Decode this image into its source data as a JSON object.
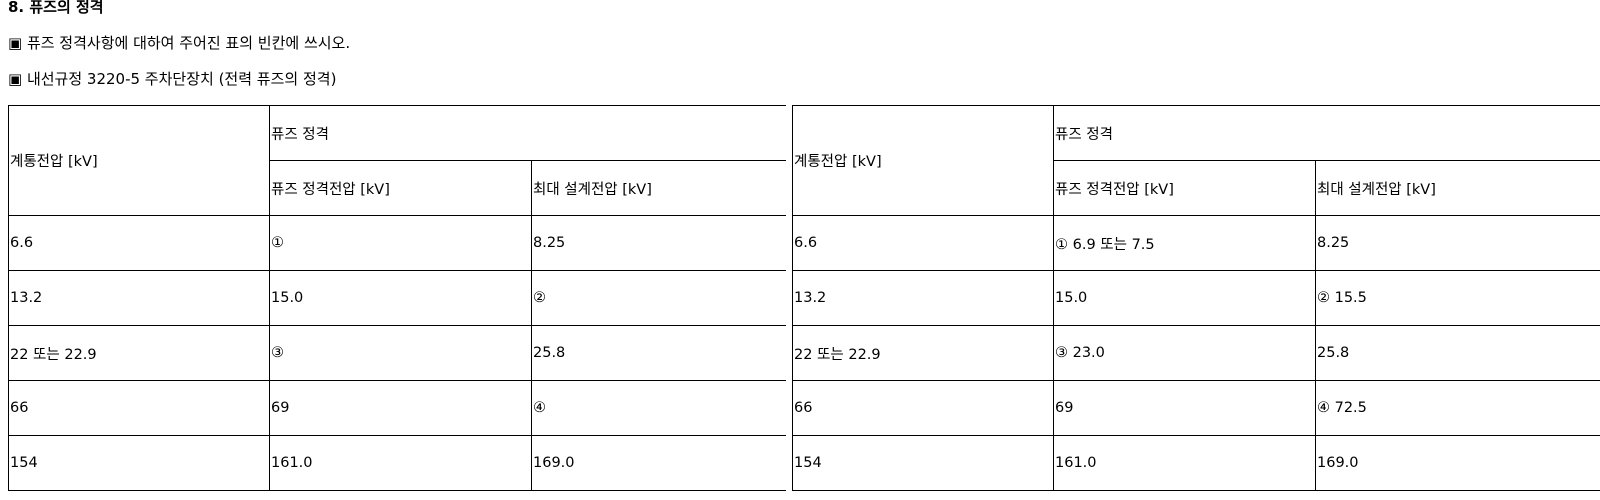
{
  "heading": "8. 퓨즈의 정격",
  "instruction": "▣ 퓨즈 정격사항에 대하여 주어진 표의 빈칸에 쓰시오.",
  "subtitle": "▣ 내선규정 3220-5 주차단장치 (전력 퓨즈의 정격)",
  "question_table": {
    "col_system_voltage": "계통전압 [kV]",
    "group_header": "퓨즈 정격",
    "col_rated_voltage": "퓨즈 정격전압 [kV]",
    "col_max_design_voltage": "최대 설계전압 [kV]",
    "rows": [
      [
        "6.6",
        "①",
        "8.25"
      ],
      [
        "13.2",
        "15.0",
        "②"
      ],
      [
        "22 또는 22.9",
        "③",
        "25.8"
      ],
      [
        "66",
        "69",
        "④"
      ],
      [
        "154",
        "161.0",
        "169.0"
      ]
    ]
  },
  "answer_table": {
    "col_system_voltage": "계통전압 [kV]",
    "group_header": "퓨즈 정격",
    "col_rated_voltage": "퓨즈 정격전압 [kV]",
    "col_max_design_voltage": "최대 설계전압 [kV]",
    "rows": [
      [
        "6.6",
        "① 6.9 또는 7.5",
        "8.25"
      ],
      [
        "13.2",
        "15.0",
        "② 15.5"
      ],
      [
        "22 또는 22.9",
        "③ 23.0",
        "25.8"
      ],
      [
        "66",
        "69",
        "④ 72.5"
      ],
      [
        "154",
        "161.0",
        "169.0"
      ]
    ]
  }
}
